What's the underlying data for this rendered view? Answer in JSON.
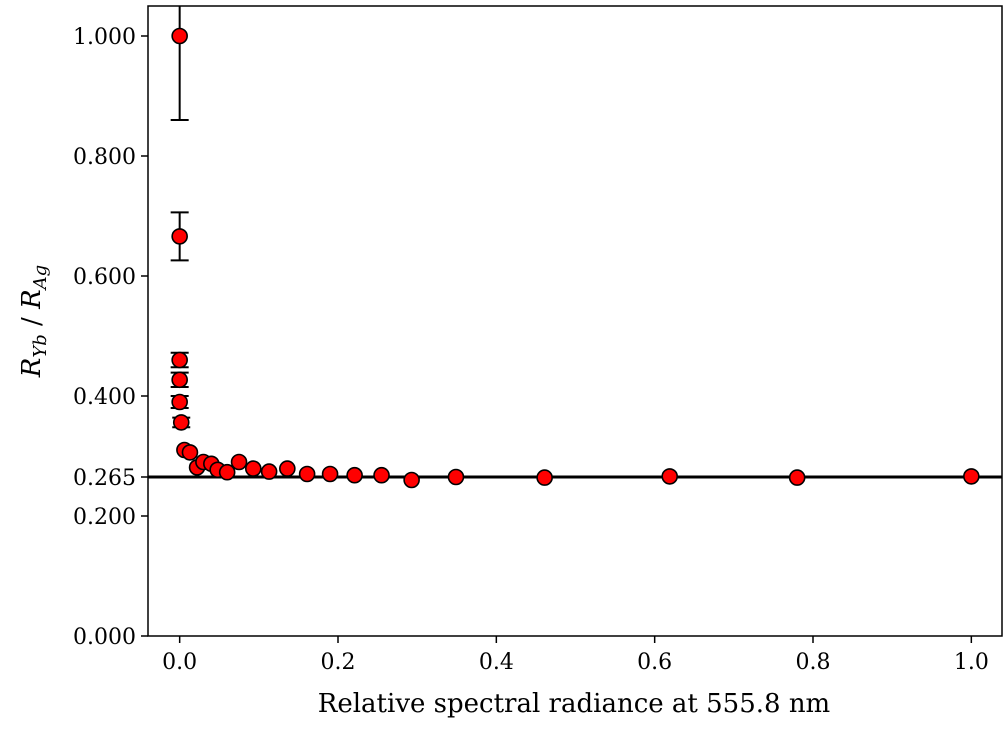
{
  "chart_data": {
    "type": "scatter",
    "title": "",
    "xlabel": "Relative spectral radiance at 555.8 nm",
    "ylabel": {
      "main": "R",
      "sub1": "Yb",
      "sep": " / ",
      "main2": "R",
      "sub2": "Ag"
    },
    "xlim": [
      -0.04,
      1.04
    ],
    "ylim": [
      0,
      1.05
    ],
    "x_ticks": [
      {
        "value": 0.0,
        "label": "0.0"
      },
      {
        "value": 0.2,
        "label": "0.2"
      },
      {
        "value": 0.4,
        "label": "0.4"
      },
      {
        "value": 0.6,
        "label": "0.6"
      },
      {
        "value": 0.8,
        "label": "0.8"
      },
      {
        "value": 1.0,
        "label": "1.0"
      }
    ],
    "y_ticks": [
      {
        "value": 0.0,
        "label": "0.000"
      },
      {
        "value": 0.2,
        "label": "0.200"
      },
      {
        "value": 0.265,
        "label": "0.265"
      },
      {
        "value": 0.4,
        "label": "0.400"
      },
      {
        "value": 0.6,
        "label": "0.600"
      },
      {
        "value": 0.8,
        "label": "0.800"
      },
      {
        "value": 1.0,
        "label": "1.000"
      }
    ],
    "reference_line": {
      "y": 0.265,
      "color": "#000000"
    },
    "grid": false,
    "marker_color": "#ff0000",
    "marker_edge": "#000000",
    "series": [
      {
        "points": [
          {
            "x": 0.0,
            "y": 1.0,
            "err": 0.14
          },
          {
            "x": 0.0,
            "y": 0.666,
            "err": 0.04
          },
          {
            "x": 0.0,
            "y": 0.46,
            "err": 0.012
          },
          {
            "x": 0.0,
            "y": 0.427,
            "err": 0.012
          },
          {
            "x": 0.0,
            "y": 0.39,
            "err": 0.01
          },
          {
            "x": 0.002,
            "y": 0.356,
            "err": 0.008
          },
          {
            "x": 0.006,
            "y": 0.31,
            "err": 0
          },
          {
            "x": 0.013,
            "y": 0.306,
            "err": 0
          },
          {
            "x": 0.022,
            "y": 0.281,
            "err": 0
          },
          {
            "x": 0.03,
            "y": 0.29,
            "err": 0
          },
          {
            "x": 0.04,
            "y": 0.287,
            "err": 0
          },
          {
            "x": 0.048,
            "y": 0.277,
            "err": 0
          },
          {
            "x": 0.06,
            "y": 0.273,
            "err": 0
          },
          {
            "x": 0.075,
            "y": 0.29,
            "err": 0
          },
          {
            "x": 0.093,
            "y": 0.279,
            "err": 0
          },
          {
            "x": 0.113,
            "y": 0.274,
            "err": 0
          },
          {
            "x": 0.136,
            "y": 0.279,
            "err": 0
          },
          {
            "x": 0.161,
            "y": 0.27,
            "err": 0
          },
          {
            "x": 0.19,
            "y": 0.27,
            "err": 0
          },
          {
            "x": 0.221,
            "y": 0.268,
            "err": 0
          },
          {
            "x": 0.255,
            "y": 0.268,
            "err": 0
          },
          {
            "x": 0.293,
            "y": 0.26,
            "err": 0
          },
          {
            "x": 0.349,
            "y": 0.265,
            "err": 0
          },
          {
            "x": 0.461,
            "y": 0.264,
            "err": 0
          },
          {
            "x": 0.619,
            "y": 0.266,
            "err": 0
          },
          {
            "x": 0.78,
            "y": 0.264,
            "err": 0
          },
          {
            "x": 1.0,
            "y": 0.266,
            "err": 0
          }
        ]
      }
    ]
  }
}
